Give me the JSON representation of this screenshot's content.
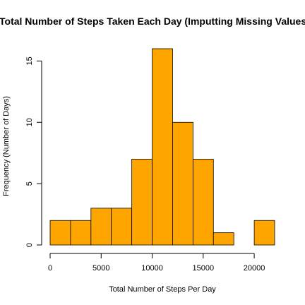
{
  "chart_data": {
    "type": "bar",
    "title": "Total Number of Steps Taken Each Day (Imputting Missing Values)",
    "xlabel": "Total Number of Steps Per Day",
    "ylabel": "Frequency (Number of Days)",
    "bin_edges": [
      0,
      2000,
      4000,
      6000,
      8000,
      10000,
      12000,
      14000,
      16000,
      18000,
      20000,
      22000
    ],
    "values": [
      2,
      2,
      3,
      3,
      7,
      16,
      10,
      7,
      1,
      0,
      2
    ],
    "xlim": [
      0,
      22000
    ],
    "ylim": [
      0,
      16
    ],
    "x_ticks": [
      0,
      5000,
      10000,
      15000,
      20000
    ],
    "x_tick_labels": [
      "0",
      "5000",
      "10000",
      "15000",
      "20000"
    ],
    "y_ticks": [
      0,
      5,
      10,
      15
    ],
    "y_tick_labels": [
      "0",
      "5",
      "10",
      "15"
    ],
    "bar_color": "#FFA500",
    "grid": false,
    "legend": "none"
  }
}
